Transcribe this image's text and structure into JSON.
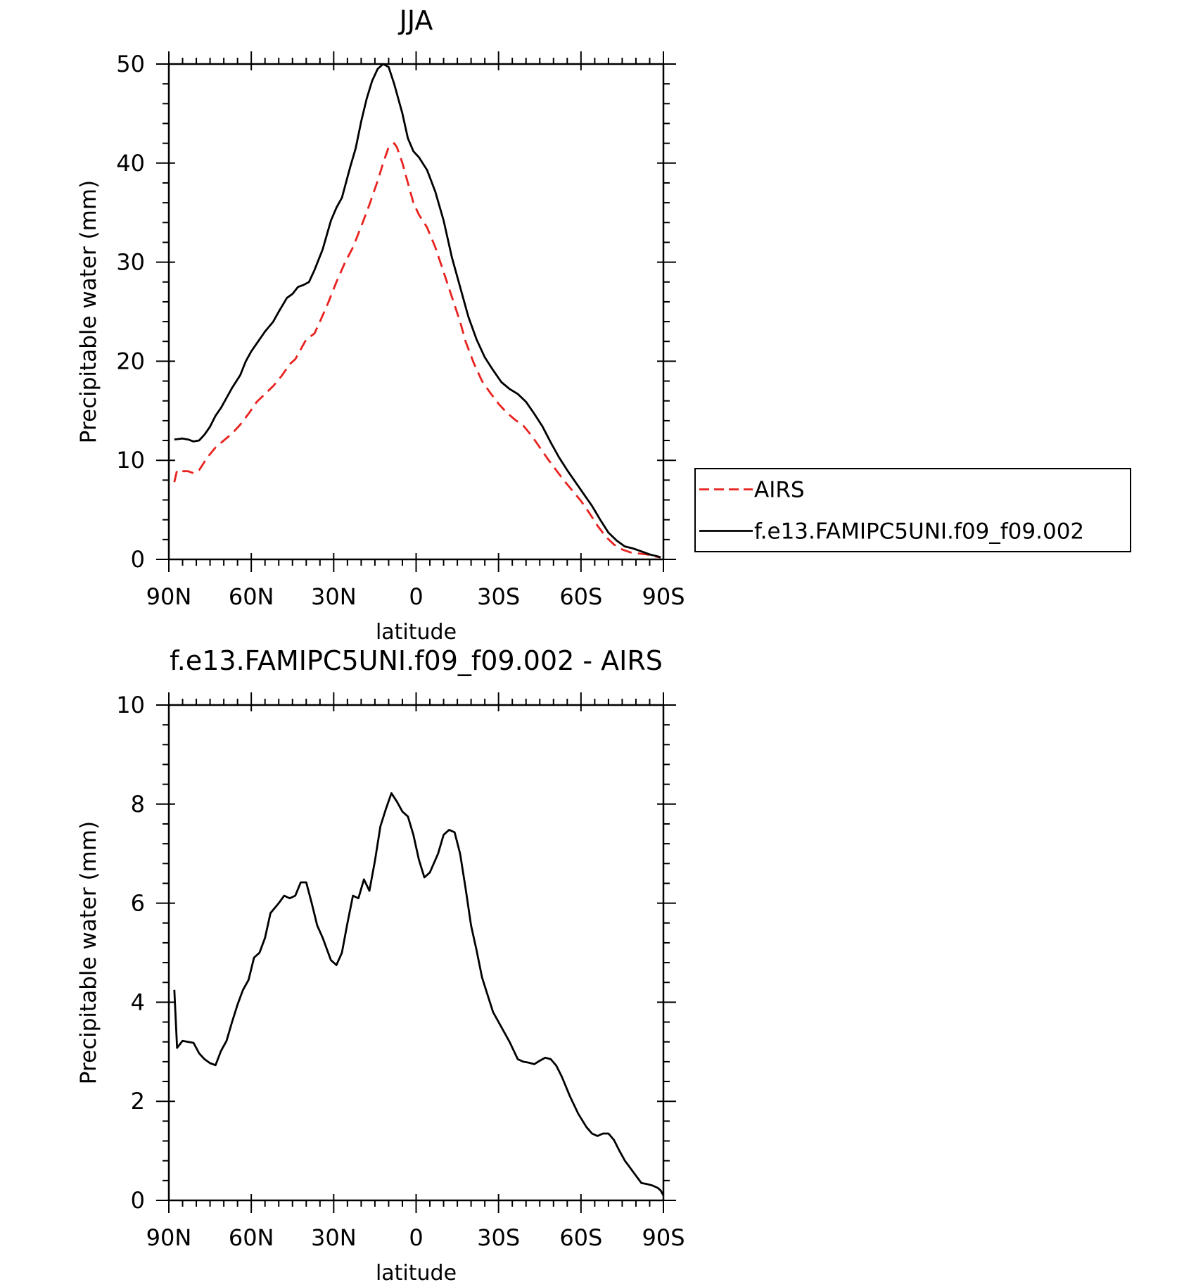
{
  "chart_data": [
    {
      "type": "line",
      "title": "JJA",
      "xlabel": "latitude",
      "ylabel": "Precipitable water (mm)",
      "xlim": [
        90,
        -90
      ],
      "ylim": [
        0,
        50
      ],
      "x_ticks": [
        90,
        60,
        30,
        0,
        -30,
        -60,
        -90
      ],
      "x_tick_labels": [
        "90N",
        "60N",
        "30N",
        "0",
        "30S",
        "60S",
        "90S"
      ],
      "y_ticks": [
        0,
        10,
        20,
        30,
        40,
        50
      ],
      "y_tick_labels": [
        "0",
        "10",
        "20",
        "30",
        "40",
        "50"
      ],
      "legend": {
        "placement": "right"
      },
      "series": [
        {
          "name": "AIRS",
          "color": "#e8221e",
          "dash": "dashed",
          "points": [
            [
              88,
              7.8
            ],
            [
              87,
              9.0
            ],
            [
              85,
              8.9
            ],
            [
              83,
              8.9
            ],
            [
              81,
              8.7
            ],
            [
              79,
              9.0
            ],
            [
              76,
              10.3
            ],
            [
              73,
              11.3
            ],
            [
              70,
              12.0
            ],
            [
              67,
              12.7
            ],
            [
              64,
              13.6
            ],
            [
              61,
              14.7
            ],
            [
              58,
              15.9
            ],
            [
              55,
              16.7
            ],
            [
              52,
              17.5
            ],
            [
              49,
              18.5
            ],
            [
              46,
              19.7
            ],
            [
              44,
              20.2
            ],
            [
              42,
              21.2
            ],
            [
              40,
              22.2
            ],
            [
              37,
              22.8
            ],
            [
              35,
              24.0
            ],
            [
              32,
              25.9
            ],
            [
              29,
              28.0
            ],
            [
              26,
              29.9
            ],
            [
              23,
              31.5
            ],
            [
              20,
              33.6
            ],
            [
              17,
              35.8
            ],
            [
              14,
              38.2
            ],
            [
              12,
              40.0
            ],
            [
              10,
              41.6
            ],
            [
              8,
              42.0
            ],
            [
              7,
              41.6
            ],
            [
              5,
              40.0
            ],
            [
              3,
              38.0
            ],
            [
              1,
              36.0
            ],
            [
              -1,
              34.8
            ],
            [
              -4,
              33.5
            ],
            [
              -7,
              31.5
            ],
            [
              -10,
              29.0
            ],
            [
              -13,
              26.5
            ],
            [
              -16,
              24.0
            ],
            [
              -18,
              22.0
            ],
            [
              -21,
              19.8
            ],
            [
              -24,
              18.0
            ],
            [
              -27,
              16.8
            ],
            [
              -30,
              15.7
            ],
            [
              -33,
              14.8
            ],
            [
              -36,
              14.1
            ],
            [
              -39,
              13.5
            ],
            [
              -42,
              12.5
            ],
            [
              -45,
              11.3
            ],
            [
              -48,
              10.1
            ],
            [
              -51,
              9.0
            ],
            [
              -54,
              7.9
            ],
            [
              -57,
              6.9
            ],
            [
              -60,
              5.9
            ],
            [
              -63,
              4.7
            ],
            [
              -66,
              3.4
            ],
            [
              -69,
              2.3
            ],
            [
              -72,
              1.5
            ],
            [
              -75,
              1.0
            ],
            [
              -78,
              0.7
            ],
            [
              -81,
              0.6
            ],
            [
              -84,
              0.5
            ],
            [
              -87,
              0.3
            ],
            [
              -89,
              0.2
            ]
          ]
        },
        {
          "name": "f.e13.FAMIPC5UNI.f09_f09.002",
          "color": "#000000",
          "dash": "solid",
          "points": [
            [
              88,
              12.1
            ],
            [
              85,
              12.2
            ],
            [
              83,
              12.1
            ],
            [
              81,
              11.9
            ],
            [
              79,
              12.0
            ],
            [
              77,
              12.6
            ],
            [
              75,
              13.4
            ],
            [
              73,
              14.5
            ],
            [
              71,
              15.3
            ],
            [
              69,
              16.3
            ],
            [
              67,
              17.3
            ],
            [
              64,
              18.6
            ],
            [
              62,
              20.0
            ],
            [
              60,
              21.0
            ],
            [
              57,
              22.2
            ],
            [
              55,
              23.0
            ],
            [
              52,
              24.0
            ],
            [
              50,
              25.0
            ],
            [
              47,
              26.4
            ],
            [
              45,
              26.8
            ],
            [
              43,
              27.5
            ],
            [
              41,
              27.7
            ],
            [
              39,
              28.0
            ],
            [
              37,
              29.2
            ],
            [
              34,
              31.3
            ],
            [
              31,
              34.2
            ],
            [
              29,
              35.5
            ],
            [
              27,
              36.5
            ],
            [
              24,
              39.6
            ],
            [
              22,
              41.5
            ],
            [
              20,
              44.2
            ],
            [
              18,
              46.5
            ],
            [
              16,
              48.3
            ],
            [
              14,
              49.5
            ],
            [
              12,
              50.0
            ],
            [
              10,
              49.7
            ],
            [
              8,
              48.0
            ],
            [
              5,
              45.0
            ],
            [
              3,
              42.5
            ],
            [
              1,
              41.2
            ],
            [
              -1,
              40.6
            ],
            [
              -4,
              39.3
            ],
            [
              -7,
              37.1
            ],
            [
              -10,
              34.2
            ],
            [
              -13,
              30.5
            ],
            [
              -16,
              27.5
            ],
            [
              -19,
              24.5
            ],
            [
              -22,
              22.2
            ],
            [
              -25,
              20.4
            ],
            [
              -28,
              19.1
            ],
            [
              -31,
              17.9
            ],
            [
              -34,
              17.2
            ],
            [
              -37,
              16.7
            ],
            [
              -40,
              15.9
            ],
            [
              -43,
              14.7
            ],
            [
              -46,
              13.4
            ],
            [
              -49,
              11.8
            ],
            [
              -52,
              10.3
            ],
            [
              -55,
              9.0
            ],
            [
              -58,
              7.8
            ],
            [
              -61,
              6.6
            ],
            [
              -64,
              5.4
            ],
            [
              -67,
              4.0
            ],
            [
              -70,
              2.7
            ],
            [
              -73,
              1.9
            ],
            [
              -76,
              1.3
            ],
            [
              -79,
              1.1
            ],
            [
              -82,
              0.8
            ],
            [
              -85,
              0.5
            ],
            [
              -88,
              0.3
            ],
            [
              -89,
              0.2
            ]
          ]
        }
      ]
    },
    {
      "type": "line",
      "title": "f.e13.FAMIPC5UNI.f09_f09.002 - AIRS",
      "xlabel": "latitude",
      "ylabel": "Precipitable water (mm)",
      "xlim": [
        90,
        -90
      ],
      "ylim": [
        0,
        10
      ],
      "x_ticks": [
        90,
        60,
        30,
        0,
        -30,
        -60,
        -90
      ],
      "x_tick_labels": [
        "90N",
        "60N",
        "30N",
        "0",
        "30S",
        "60S",
        "90S"
      ],
      "y_ticks": [
        0,
        2,
        4,
        6,
        8,
        10
      ],
      "y_tick_labels": [
        "0",
        "2",
        "4",
        "6",
        "8",
        "10"
      ],
      "series": [
        {
          "color": "#000000",
          "dash": "solid",
          "points": [
            [
              88,
              4.25
            ],
            [
              87,
              3.08
            ],
            [
              85,
              3.22
            ],
            [
              83,
              3.2
            ],
            [
              81,
              3.18
            ],
            [
              79,
              2.97
            ],
            [
              77,
              2.85
            ],
            [
              75,
              2.77
            ],
            [
              73,
              2.73
            ],
            [
              71,
              3.02
            ],
            [
              69,
              3.22
            ],
            [
              67,
              3.6
            ],
            [
              65,
              3.95
            ],
            [
              63,
              4.25
            ],
            [
              61,
              4.45
            ],
            [
              59,
              4.9
            ],
            [
              57,
              5.0
            ],
            [
              55,
              5.3
            ],
            [
              53,
              5.8
            ],
            [
              50,
              6.0
            ],
            [
              48,
              6.15
            ],
            [
              46,
              6.1
            ],
            [
              44,
              6.15
            ],
            [
              42,
              6.42
            ],
            [
              40,
              6.42
            ],
            [
              38,
              6.0
            ],
            [
              36,
              5.55
            ],
            [
              34,
              5.3
            ],
            [
              31,
              4.85
            ],
            [
              29,
              4.75
            ],
            [
              27,
              5.0
            ],
            [
              25,
              5.6
            ],
            [
              23,
              6.15
            ],
            [
              21,
              6.1
            ],
            [
              19,
              6.48
            ],
            [
              17,
              6.25
            ],
            [
              15,
              6.85
            ],
            [
              13,
              7.55
            ],
            [
              11,
              7.9
            ],
            [
              9,
              8.22
            ],
            [
              7,
              8.05
            ],
            [
              5,
              7.85
            ],
            [
              3,
              7.75
            ],
            [
              1,
              7.38
            ],
            [
              -1,
              6.88
            ],
            [
              -3,
              6.52
            ],
            [
              -5,
              6.62
            ],
            [
              -8,
              7.0
            ],
            [
              -10,
              7.38
            ],
            [
              -12,
              7.48
            ],
            [
              -14,
              7.43
            ],
            [
              -16,
              7.0
            ],
            [
              -18,
              6.3
            ],
            [
              -20,
              5.55
            ],
            [
              -22,
              5.05
            ],
            [
              -24,
              4.5
            ],
            [
              -26,
              4.15
            ],
            [
              -28,
              3.8
            ],
            [
              -31,
              3.5
            ],
            [
              -34,
              3.2
            ],
            [
              -37,
              2.85
            ],
            [
              -39,
              2.8
            ],
            [
              -41,
              2.78
            ],
            [
              -43,
              2.75
            ],
            [
              -45,
              2.82
            ],
            [
              -47,
              2.88
            ],
            [
              -49,
              2.85
            ],
            [
              -51,
              2.72
            ],
            [
              -53,
              2.5
            ],
            [
              -56,
              2.1
            ],
            [
              -59,
              1.75
            ],
            [
              -62,
              1.48
            ],
            [
              -64,
              1.35
            ],
            [
              -66,
              1.3
            ],
            [
              -68,
              1.35
            ],
            [
              -70,
              1.35
            ],
            [
              -72,
              1.22
            ],
            [
              -74,
              1.0
            ],
            [
              -76,
              0.8
            ],
            [
              -78,
              0.65
            ],
            [
              -80,
              0.5
            ],
            [
              -82,
              0.35
            ],
            [
              -84,
              0.33
            ],
            [
              -86,
              0.3
            ],
            [
              -88,
              0.25
            ],
            [
              -89,
              0.2
            ],
            [
              -90,
              0.1
            ]
          ]
        }
      ]
    }
  ]
}
